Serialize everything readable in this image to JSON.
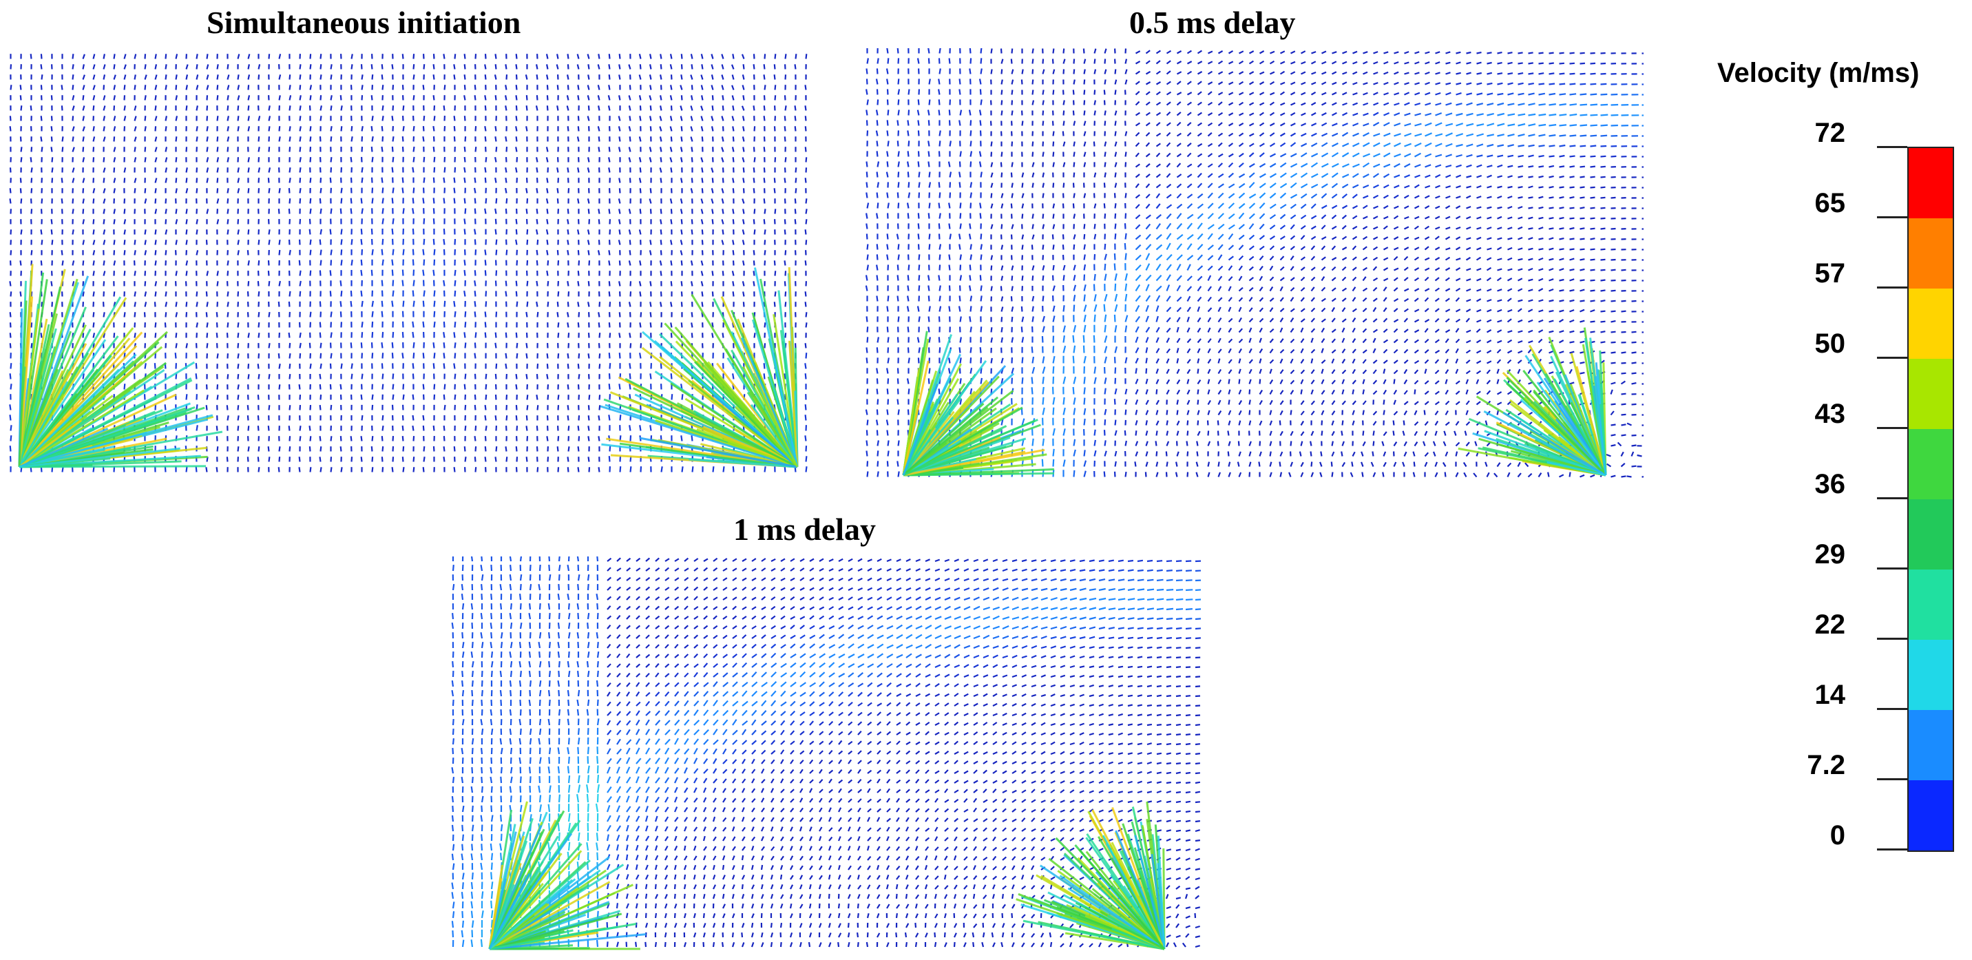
{
  "panels": [
    {
      "id": "simultaneous",
      "title": "Simultaneous initiation"
    },
    {
      "id": "delay05",
      "title": "0.5 ms delay"
    },
    {
      "id": "delay1",
      "title": "1 ms delay"
    }
  ],
  "legend": {
    "title": "Velocity (m/ms)",
    "ticks": [
      "72",
      "65",
      "57",
      "50",
      "43",
      "36",
      "29",
      "22",
      "14",
      "7.2",
      "0"
    ],
    "colors": [
      "#ff0000",
      "#ff7f00",
      "#ffd400",
      "#a8e600",
      "#3fd73f",
      "#22c95a",
      "#20e0a0",
      "#20d8e8",
      "#1a8cff",
      "#0a28ff"
    ]
  }
}
